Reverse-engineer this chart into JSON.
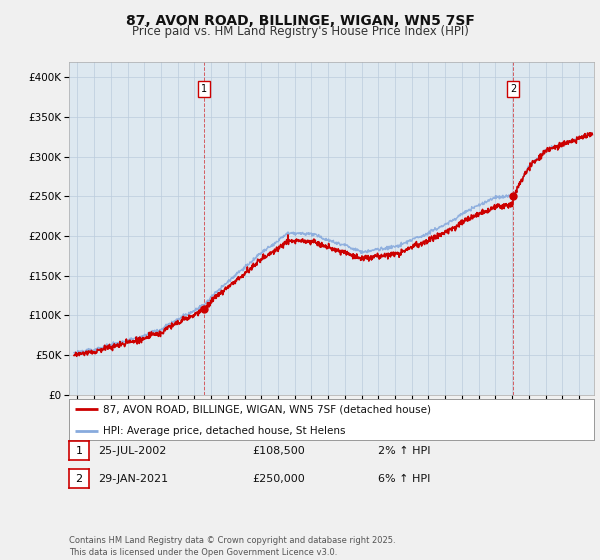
{
  "title_line1": "87, AVON ROAD, BILLINGE, WIGAN, WN5 7SF",
  "title_line2": "Price paid vs. HM Land Registry's House Price Index (HPI)",
  "legend_line1": "87, AVON ROAD, BILLINGE, WIGAN, WN5 7SF (detached house)",
  "legend_line2": "HPI: Average price, detached house, St Helens",
  "annotation1_label": "1",
  "annotation1_date": "25-JUL-2002",
  "annotation1_price": "£108,500",
  "annotation1_hpi": "2% ↑ HPI",
  "annotation2_label": "2",
  "annotation2_date": "29-JAN-2021",
  "annotation2_price": "£250,000",
  "annotation2_hpi": "6% ↑ HPI",
  "footer": "Contains HM Land Registry data © Crown copyright and database right 2025.\nThis data is licensed under the Open Government Licence v3.0.",
  "property_color": "#cc0000",
  "hpi_color": "#88aadd",
  "background_color": "#f0f0f0",
  "plot_background": "#dde8f0",
  "ylim": [
    0,
    420000
  ],
  "yticks": [
    0,
    50000,
    100000,
    150000,
    200000,
    250000,
    300000,
    350000,
    400000
  ],
  "sale1_year": 2002.56,
  "sale1_price": 108500,
  "sale2_year": 2021.08,
  "sale2_price": 250000
}
